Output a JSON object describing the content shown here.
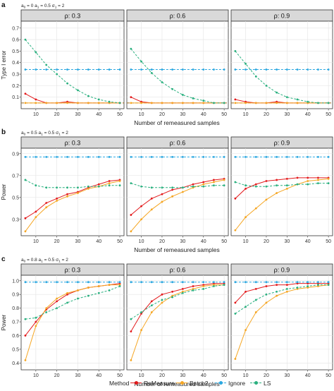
{
  "legend": {
    "title": "Method",
    "items": [
      {
        "label": "ReMeasure",
        "color": "#e31a1c",
        "dashed": false
      },
      {
        "label": "Batch2",
        "color": "#f5a623",
        "dashed": false
      },
      {
        "label": "Ignore",
        "color": "#2aa7e0",
        "dashed": true
      },
      {
        "label": "LS",
        "color": "#2ab07f",
        "dashed": true
      }
    ]
  },
  "chart_data": [
    {
      "type": "line",
      "panel_label": "a",
      "params_label": "a_0 = 0 a_1 = 0.5 σ_1 = 2",
      "xlabel": "Number of remeasured samples",
      "ylabel": "Type I error",
      "x": [
        5,
        10,
        15,
        20,
        25,
        30,
        35,
        40,
        45,
        50
      ],
      "xlim": [
        3,
        52
      ],
      "xticks": [
        10,
        20,
        30,
        40,
        50
      ],
      "ylim": [
        0,
        0.76
      ],
      "yticks": [
        0.1,
        0.2,
        0.3,
        0.4,
        0.5,
        0.6,
        0.7
      ],
      "reference_line": {
        "y": 0.05,
        "color": "#9e6b1e",
        "dashed": true
      },
      "facets": [
        {
          "strip": "ρ: 0.3",
          "series": [
            {
              "name": "ReMeasure",
              "values": [
                0.13,
                0.08,
                0.05,
                0.05,
                0.06,
                0.05,
                0.05,
                0.05,
                0.05,
                0.05
              ]
            },
            {
              "name": "Batch2",
              "values": [
                0.05,
                0.05,
                0.05,
                0.05,
                0.05,
                0.05,
                0.05,
                0.05,
                0.05,
                0.05
              ]
            },
            {
              "name": "Ignore",
              "values": [
                0.34,
                0.34,
                0.34,
                0.34,
                0.34,
                0.34,
                0.34,
                0.34,
                0.34,
                0.34
              ]
            },
            {
              "name": "LS",
              "values": [
                0.6,
                0.49,
                0.38,
                0.3,
                0.22,
                0.16,
                0.11,
                0.08,
                0.06,
                0.05
              ]
            }
          ]
        },
        {
          "strip": "ρ: 0.6",
          "series": [
            {
              "name": "ReMeasure",
              "values": [
                0.1,
                0.06,
                0.05,
                0.05,
                0.05,
                0.05,
                0.05,
                0.05,
                0.05,
                0.05
              ]
            },
            {
              "name": "Batch2",
              "values": [
                0.05,
                0.05,
                0.05,
                0.05,
                0.05,
                0.05,
                0.05,
                0.05,
                0.05,
                0.05
              ]
            },
            {
              "name": "Ignore",
              "values": [
                0.34,
                0.34,
                0.34,
                0.34,
                0.34,
                0.34,
                0.34,
                0.34,
                0.34,
                0.34
              ]
            },
            {
              "name": "LS",
              "values": [
                0.52,
                0.41,
                0.31,
                0.23,
                0.17,
                0.12,
                0.09,
                0.07,
                0.05,
                0.05
              ]
            }
          ]
        },
        {
          "strip": "ρ: 0.9",
          "series": [
            {
              "name": "ReMeasure",
              "values": [
                0.08,
                0.06,
                0.05,
                0.05,
                0.06,
                0.05,
                0.05,
                0.05,
                0.05,
                0.05
              ]
            },
            {
              "name": "Batch2",
              "values": [
                0.05,
                0.05,
                0.05,
                0.05,
                0.05,
                0.05,
                0.05,
                0.05,
                0.05,
                0.05
              ]
            },
            {
              "name": "Ignore",
              "values": [
                0.34,
                0.34,
                0.34,
                0.34,
                0.34,
                0.34,
                0.34,
                0.34,
                0.34,
                0.34
              ]
            },
            {
              "name": "LS",
              "values": [
                0.5,
                0.39,
                0.28,
                0.2,
                0.14,
                0.1,
                0.08,
                0.06,
                0.05,
                0.05
              ]
            }
          ]
        }
      ]
    },
    {
      "type": "line",
      "panel_label": "b",
      "params_label": "a_0 = 0.5 a_1 = 0.5 σ_1 = 2",
      "xlabel": "Number of remeasured samples",
      "ylabel": "Power",
      "x": [
        5,
        10,
        15,
        20,
        25,
        30,
        35,
        40,
        45,
        50
      ],
      "xlim": [
        3,
        52
      ],
      "xticks": [
        10,
        20,
        30,
        40,
        50
      ],
      "ylim": [
        0.15,
        0.95
      ],
      "yticks": [
        0.3,
        0.5,
        0.7,
        0.9
      ],
      "facets": [
        {
          "strip": "ρ: 0.3",
          "series": [
            {
              "name": "ReMeasure",
              "values": [
                0.31,
                0.37,
                0.45,
                0.49,
                0.53,
                0.55,
                0.59,
                0.62,
                0.65,
                0.66
              ]
            },
            {
              "name": "Batch2",
              "values": [
                0.19,
                0.32,
                0.41,
                0.47,
                0.51,
                0.54,
                0.58,
                0.6,
                0.63,
                0.65
              ]
            },
            {
              "name": "Ignore",
              "values": [
                0.87,
                0.87,
                0.87,
                0.87,
                0.87,
                0.87,
                0.87,
                0.87,
                0.87,
                0.87
              ]
            },
            {
              "name": "LS",
              "values": [
                0.66,
                0.61,
                0.59,
                0.59,
                0.59,
                0.59,
                0.6,
                0.6,
                0.61,
                0.61
              ]
            }
          ]
        },
        {
          "strip": "ρ: 0.6",
          "series": [
            {
              "name": "ReMeasure",
              "values": [
                0.34,
                0.42,
                0.49,
                0.53,
                0.57,
                0.59,
                0.62,
                0.64,
                0.66,
                0.67
              ]
            },
            {
              "name": "Batch2",
              "values": [
                0.19,
                0.3,
                0.39,
                0.46,
                0.51,
                0.55,
                0.59,
                0.62,
                0.64,
                0.66
              ]
            },
            {
              "name": "Ignore",
              "values": [
                0.87,
                0.87,
                0.87,
                0.87,
                0.87,
                0.87,
                0.87,
                0.87,
                0.87,
                0.87
              ]
            },
            {
              "name": "LS",
              "values": [
                0.63,
                0.6,
                0.59,
                0.59,
                0.59,
                0.59,
                0.6,
                0.6,
                0.61,
                0.61
              ]
            }
          ]
        },
        {
          "strip": "ρ: 0.9",
          "series": [
            {
              "name": "ReMeasure",
              "values": [
                0.49,
                0.58,
                0.62,
                0.65,
                0.66,
                0.67,
                0.68,
                0.68,
                0.68,
                0.68
              ]
            },
            {
              "name": "Batch2",
              "values": [
                0.2,
                0.32,
                0.4,
                0.48,
                0.54,
                0.58,
                0.62,
                0.65,
                0.66,
                0.67
              ]
            },
            {
              "name": "Ignore",
              "values": [
                0.87,
                0.87,
                0.87,
                0.87,
                0.87,
                0.87,
                0.87,
                0.87,
                0.87,
                0.87
              ]
            },
            {
              "name": "LS",
              "values": [
                0.64,
                0.61,
                0.6,
                0.6,
                0.61,
                0.61,
                0.62,
                0.62,
                0.63,
                0.63
              ]
            }
          ]
        }
      ]
    },
    {
      "type": "line",
      "panel_label": "c",
      "params_label": "a_0 = 0.8 a_1 = 0.5 σ_1 = 2",
      "xlabel": "Number of remeasured samples",
      "ylabel": "Power",
      "x": [
        5,
        10,
        15,
        20,
        25,
        30,
        35,
        40,
        45,
        50
      ],
      "xlim": [
        3,
        52
      ],
      "xticks": [
        10,
        20,
        30,
        40,
        50
      ],
      "ylim": [
        0.35,
        1.04
      ],
      "yticks": [
        0.4,
        0.5,
        0.6,
        0.7,
        0.8,
        0.9,
        1.0
      ],
      "ytick_labels": [
        "0.4",
        "0.5",
        "0.6",
        "0.7",
        "0.8",
        "0.9",
        "1.0"
      ],
      "facets": [
        {
          "strip": "ρ: 0.3",
          "series": [
            {
              "name": "ReMeasure",
              "values": [
                0.6,
                0.7,
                0.79,
                0.85,
                0.9,
                0.93,
                0.95,
                0.96,
                0.97,
                0.98
              ]
            },
            {
              "name": "Batch2",
              "values": [
                0.42,
                0.67,
                0.8,
                0.87,
                0.91,
                0.93,
                0.95,
                0.96,
                0.97,
                0.97
              ]
            },
            {
              "name": "Ignore",
              "values": [
                0.99,
                0.99,
                0.99,
                0.99,
                0.99,
                0.99,
                0.99,
                0.99,
                0.99,
                0.99
              ]
            },
            {
              "name": "LS",
              "values": [
                0.72,
                0.73,
                0.77,
                0.8,
                0.84,
                0.87,
                0.89,
                0.91,
                0.93,
                0.96
              ]
            }
          ]
        },
        {
          "strip": "ρ: 0.6",
          "series": [
            {
              "name": "ReMeasure",
              "values": [
                0.63,
                0.76,
                0.85,
                0.9,
                0.92,
                0.94,
                0.96,
                0.97,
                0.98,
                0.98
              ]
            },
            {
              "name": "Batch2",
              "values": [
                0.42,
                0.64,
                0.77,
                0.84,
                0.89,
                0.92,
                0.94,
                0.96,
                0.97,
                0.97
              ]
            },
            {
              "name": "Ignore",
              "values": [
                0.99,
                0.99,
                0.99,
                0.99,
                0.99,
                0.99,
                0.99,
                0.99,
                0.99,
                0.99
              ]
            },
            {
              "name": "LS",
              "values": [
                0.72,
                0.77,
                0.82,
                0.86,
                0.88,
                0.91,
                0.93,
                0.94,
                0.96,
                0.97
              ]
            }
          ]
        },
        {
          "strip": "ρ: 0.9",
          "series": [
            {
              "name": "ReMeasure",
              "values": [
                0.84,
                0.92,
                0.94,
                0.96,
                0.97,
                0.97,
                0.98,
                0.98,
                0.98,
                0.98
              ]
            },
            {
              "name": "Batch2",
              "values": [
                0.43,
                0.64,
                0.77,
                0.84,
                0.89,
                0.92,
                0.94,
                0.95,
                0.96,
                0.97
              ]
            },
            {
              "name": "Ignore",
              "values": [
                0.99,
                0.99,
                0.99,
                0.99,
                0.99,
                0.99,
                0.99,
                0.99,
                0.99,
                0.99
              ]
            },
            {
              "name": "LS",
              "values": [
                0.76,
                0.81,
                0.86,
                0.9,
                0.92,
                0.94,
                0.95,
                0.96,
                0.97,
                0.97
              ]
            }
          ]
        }
      ]
    }
  ]
}
